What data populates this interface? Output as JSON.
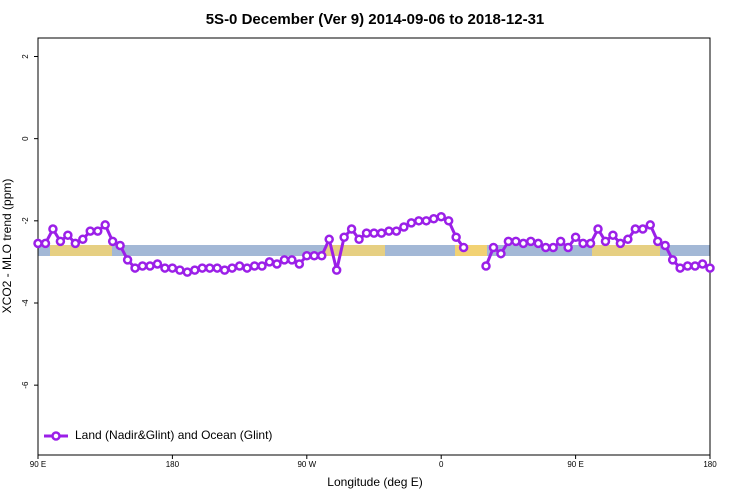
{
  "chart_data": {
    "type": "line",
    "title": "5S-0 December (Ver 9)   2014-09-06 to 2018-12-31",
    "xlabel": "Longitude (deg E)",
    "ylabel": "XCO2 - MLO trend (ppm)",
    "x": [
      90,
      95,
      100,
      105,
      110,
      115,
      120,
      125,
      130,
      135,
      140,
      145,
      150,
      155,
      160,
      165,
      170,
      175,
      180,
      185,
      190,
      195,
      200,
      205,
      210,
      215,
      220,
      225,
      230,
      235,
      240,
      245,
      250,
      255,
      260,
      265,
      270,
      275,
      280,
      285,
      290,
      295,
      300,
      305,
      310,
      315,
      320,
      325,
      330,
      335,
      340,
      345,
      350,
      355,
      360,
      365,
      370,
      375,
      380,
      385,
      390,
      395,
      400,
      405,
      410,
      415,
      420,
      425,
      430,
      435,
      440,
      445,
      450,
      455,
      460,
      465,
      470,
      475,
      480,
      485,
      490,
      495,
      500,
      505,
      510,
      515,
      520,
      525,
      530,
      535,
      540
    ],
    "series": [
      {
        "name": "Land (Nadir&Glint) and Ocean (Glint)",
        "color": "#9b1fe8",
        "values": [
          -2.55,
          -2.55,
          -2.2,
          -2.5,
          -2.35,
          -2.55,
          -2.45,
          -2.25,
          -2.25,
          -2.1,
          -2.5,
          -2.6,
          -2.95,
          -3.15,
          -3.1,
          -3.1,
          -3.05,
          -3.15,
          -3.15,
          -3.2,
          -3.25,
          -3.2,
          -3.15,
          -3.15,
          -3.15,
          -3.2,
          -3.15,
          -3.1,
          -3.15,
          -3.1,
          -3.1,
          -3.0,
          -3.05,
          -2.95,
          -2.95,
          -3.05,
          -2.85,
          -2.85,
          -2.85,
          -2.45,
          -3.2,
          -2.4,
          -2.2,
          -2.45,
          -2.3,
          -2.3,
          -2.3,
          -2.25,
          -2.25,
          -2.15,
          -2.05,
          -2.0,
          -2.0,
          -1.95,
          -1.9,
          -2.0,
          -2.4,
          -2.65,
          null,
          null,
          -3.1,
          -2.65,
          -2.8,
          -2.5,
          -2.5,
          -2.55,
          -2.5,
          -2.55,
          -2.65,
          -2.65,
          -2.5,
          -2.65,
          -2.4,
          -2.55,
          -2.55,
          -2.2,
          -2.5,
          -2.35,
          -2.55,
          -2.45,
          -2.2,
          -2.2,
          -2.1,
          -2.5,
          -2.6,
          -2.95,
          -3.15,
          -3.1,
          -3.1,
          -3.05,
          -3.15
        ]
      }
    ],
    "xlim": [
      90,
      540
    ],
    "xticks": [
      {
        "value": 90,
        "label": "90 E"
      },
      {
        "value": 180,
        "label": "180"
      },
      {
        "value": 270,
        "label": "90 W"
      },
      {
        "value": 360,
        "label": "0"
      },
      {
        "value": 450,
        "label": "90 E"
      },
      {
        "value": 540,
        "label": "180"
      }
    ],
    "ylim": [
      -7.7,
      2.45
    ],
    "yticks": [
      -6,
      -4,
      -2,
      0,
      2
    ],
    "legend": "bottom-left"
  }
}
